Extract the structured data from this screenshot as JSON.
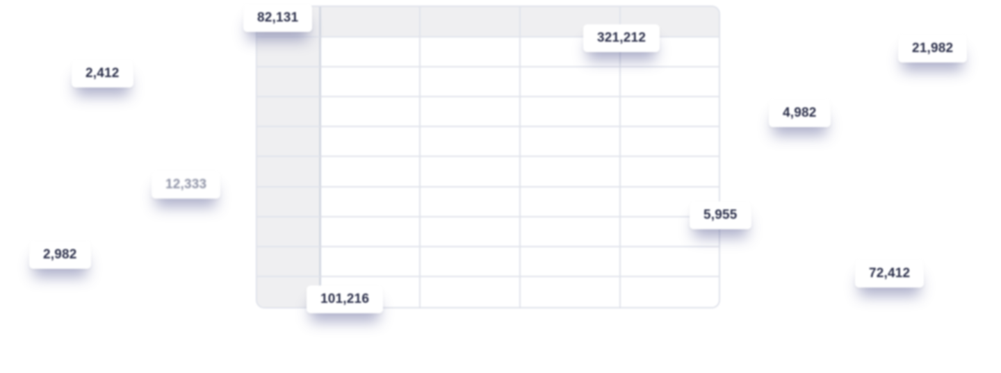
{
  "tags": {
    "t1": "82,131",
    "t2": "321,212",
    "t3": "21,982",
    "t4": "2,412",
    "t5": "4,982",
    "t6": "12,333",
    "t7": "5,955",
    "t8": "2,982",
    "t9": "72,412",
    "t10": "101,216"
  },
  "colors": {
    "tag_text": "#2b2f4a",
    "grid_line": "#e1e4ec",
    "header_fill": "#efeff1",
    "shadow": "#4c508c"
  }
}
